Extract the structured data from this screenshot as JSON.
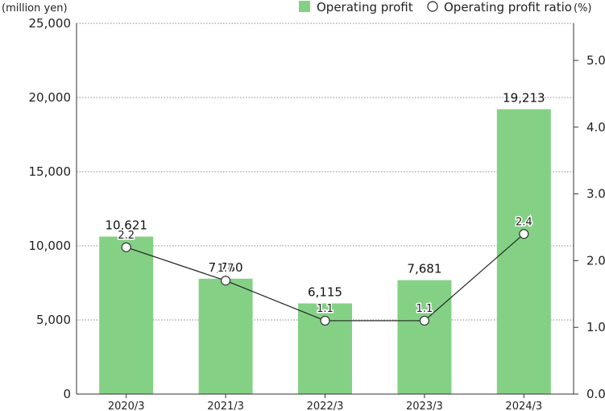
{
  "chart_data": {
    "type": "bar",
    "categories": [
      "2020/3",
      "2021/3",
      "2022/3",
      "2023/3",
      "2024/3"
    ],
    "series": [
      {
        "name": "Operating profit",
        "type": "bar",
        "axis": "left",
        "values": [
          10621,
          7780,
          6115,
          7681,
          19213
        ],
        "labels": [
          "10,621",
          "7,780",
          "6,115",
          "7,681",
          "19,213"
        ],
        "color": "#84d185"
      },
      {
        "name": "Operating profit ratio",
        "type": "line",
        "axis": "right",
        "values": [
          2.2,
          1.7,
          1.1,
          1.1,
          2.4
        ],
        "labels": [
          "2.2",
          "1.7",
          "1.1",
          "1.1",
          "2.4"
        ],
        "color": "#222222"
      }
    ],
    "left_axis": {
      "unit": "(million yen)",
      "ylim": [
        0,
        25000
      ],
      "ticks": [
        0,
        5000,
        10000,
        15000,
        20000,
        25000
      ],
      "tick_labels": [
        "0",
        "5,000",
        "10,000",
        "15,000",
        "20,000",
        "25,000"
      ]
    },
    "right_axis": {
      "unit": "(%)",
      "ticks": [
        0.0,
        1.0,
        2.0,
        3.0,
        4.0,
        5.0
      ],
      "tick_labels": [
        "0.0",
        "1.0",
        "2.0",
        "3.0",
        "4.0",
        "5.0"
      ]
    },
    "grid": "horizontal dotted",
    "legend": "top-right"
  }
}
